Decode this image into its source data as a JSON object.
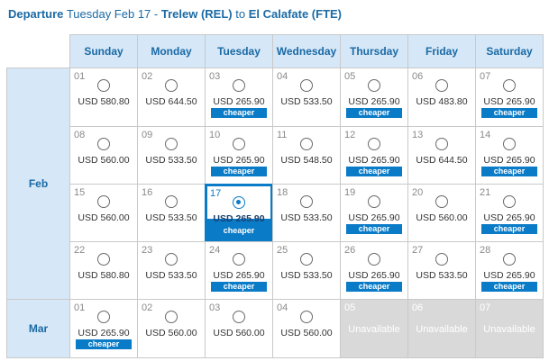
{
  "header": {
    "label": "Departure",
    "date": "Tuesday Feb 17",
    "separator": "-",
    "origin": "Trelew (REL)",
    "to": "to",
    "destination": "El Calafate (FTE)"
  },
  "days": [
    "Sunday",
    "Monday",
    "Tuesday",
    "Wednesday",
    "Thursday",
    "Friday",
    "Saturday"
  ],
  "months": [
    {
      "label": "Feb",
      "rows": 4
    },
    {
      "label": "Mar",
      "rows": 1
    }
  ],
  "cheaper_label": "cheaper",
  "unavailable_label": "Unavailable",
  "weeks": [
    [
      {
        "day": "01",
        "price": "USD 580.80"
      },
      {
        "day": "02",
        "price": "USD 644.50"
      },
      {
        "day": "03",
        "price": "USD 265.90",
        "cheaper": true
      },
      {
        "day": "04",
        "price": "USD 533.50"
      },
      {
        "day": "05",
        "price": "USD 265.90",
        "cheaper": true
      },
      {
        "day": "06",
        "price": "USD 483.80"
      },
      {
        "day": "07",
        "price": "USD 265.90",
        "cheaper": true
      }
    ],
    [
      {
        "day": "08",
        "price": "USD 560.00"
      },
      {
        "day": "09",
        "price": "USD 533.50"
      },
      {
        "day": "10",
        "price": "USD 265.90",
        "cheaper": true
      },
      {
        "day": "11",
        "price": "USD 548.50"
      },
      {
        "day": "12",
        "price": "USD 265.90",
        "cheaper": true
      },
      {
        "day": "13",
        "price": "USD 644.50"
      },
      {
        "day": "14",
        "price": "USD 265.90",
        "cheaper": true
      }
    ],
    [
      {
        "day": "15",
        "price": "USD 560.00"
      },
      {
        "day": "16",
        "price": "USD 533.50"
      },
      {
        "day": "17",
        "price": "USD 265.90",
        "cheaper": true,
        "selected": true
      },
      {
        "day": "18",
        "price": "USD 533.50"
      },
      {
        "day": "19",
        "price": "USD 265.90",
        "cheaper": true
      },
      {
        "day": "20",
        "price": "USD 560.00"
      },
      {
        "day": "21",
        "price": "USD 265.90",
        "cheaper": true
      }
    ],
    [
      {
        "day": "22",
        "price": "USD 580.80"
      },
      {
        "day": "23",
        "price": "USD 533.50"
      },
      {
        "day": "24",
        "price": "USD 265.90",
        "cheaper": true
      },
      {
        "day": "25",
        "price": "USD 533.50"
      },
      {
        "day": "26",
        "price": "USD 265.90",
        "cheaper": true
      },
      {
        "day": "27",
        "price": "USD 533.50"
      },
      {
        "day": "28",
        "price": "USD 265.90",
        "cheaper": true
      }
    ],
    [
      {
        "day": "01",
        "price": "USD 265.90",
        "cheaper": true
      },
      {
        "day": "02",
        "price": "USD 560.00"
      },
      {
        "day": "03",
        "price": "USD 560.00"
      },
      {
        "day": "04",
        "price": "USD 560.00"
      },
      {
        "day": "05",
        "unavailable": true
      },
      {
        "day": "06",
        "unavailable": true
      },
      {
        "day": "07",
        "unavailable": true
      }
    ]
  ],
  "colors": {
    "accent": "#0a7bc7",
    "header_bg": "#d6e7f7",
    "unavailable_bg": "#d9d9d9"
  }
}
